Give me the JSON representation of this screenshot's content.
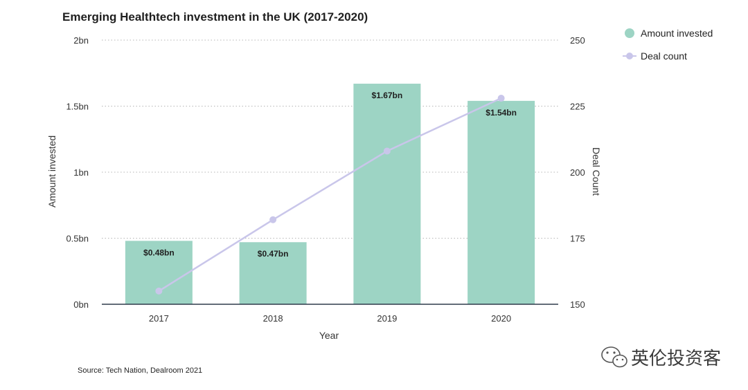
{
  "chart_data": {
    "type": "bar",
    "title": "Emerging Healthtech investment in the UK (2017-2020)",
    "xlabel": "Year",
    "ylabel_left": "Amount invested",
    "ylabel_right": "Deal Count",
    "categories": [
      "2017",
      "2018",
      "2019",
      "2020"
    ],
    "left_axis": {
      "range": [
        0,
        2
      ],
      "ticks": [
        0,
        0.5,
        1,
        1.5,
        2
      ],
      "tick_labels": [
        "0bn",
        "0.5bn",
        "1bn",
        "1.5bn",
        "2bn"
      ]
    },
    "right_axis": {
      "range": [
        150,
        250
      ],
      "ticks": [
        150,
        175,
        200,
        225,
        250
      ],
      "tick_labels": [
        "150",
        "175",
        "200",
        "225",
        "250"
      ]
    },
    "grid": "horizontal-dotted",
    "legend_position": "top-right",
    "series": [
      {
        "name": "Amount invested",
        "type": "bar",
        "axis": "left",
        "color": "#9dd4c4",
        "values": [
          0.48,
          0.47,
          1.67,
          1.54
        ],
        "data_labels": [
          "$0.48bn",
          "$0.47bn",
          "$1.67bn",
          "$1.54bn"
        ]
      },
      {
        "name": "Deal count",
        "type": "line",
        "axis": "right",
        "color": "#c9c6ea",
        "values": [
          155,
          182,
          208,
          228
        ]
      }
    ],
    "source": "Source: Tech Nation, Dealroom 2021"
  },
  "watermark": {
    "text": "英伦投资客",
    "icon": "wechat-icon"
  }
}
